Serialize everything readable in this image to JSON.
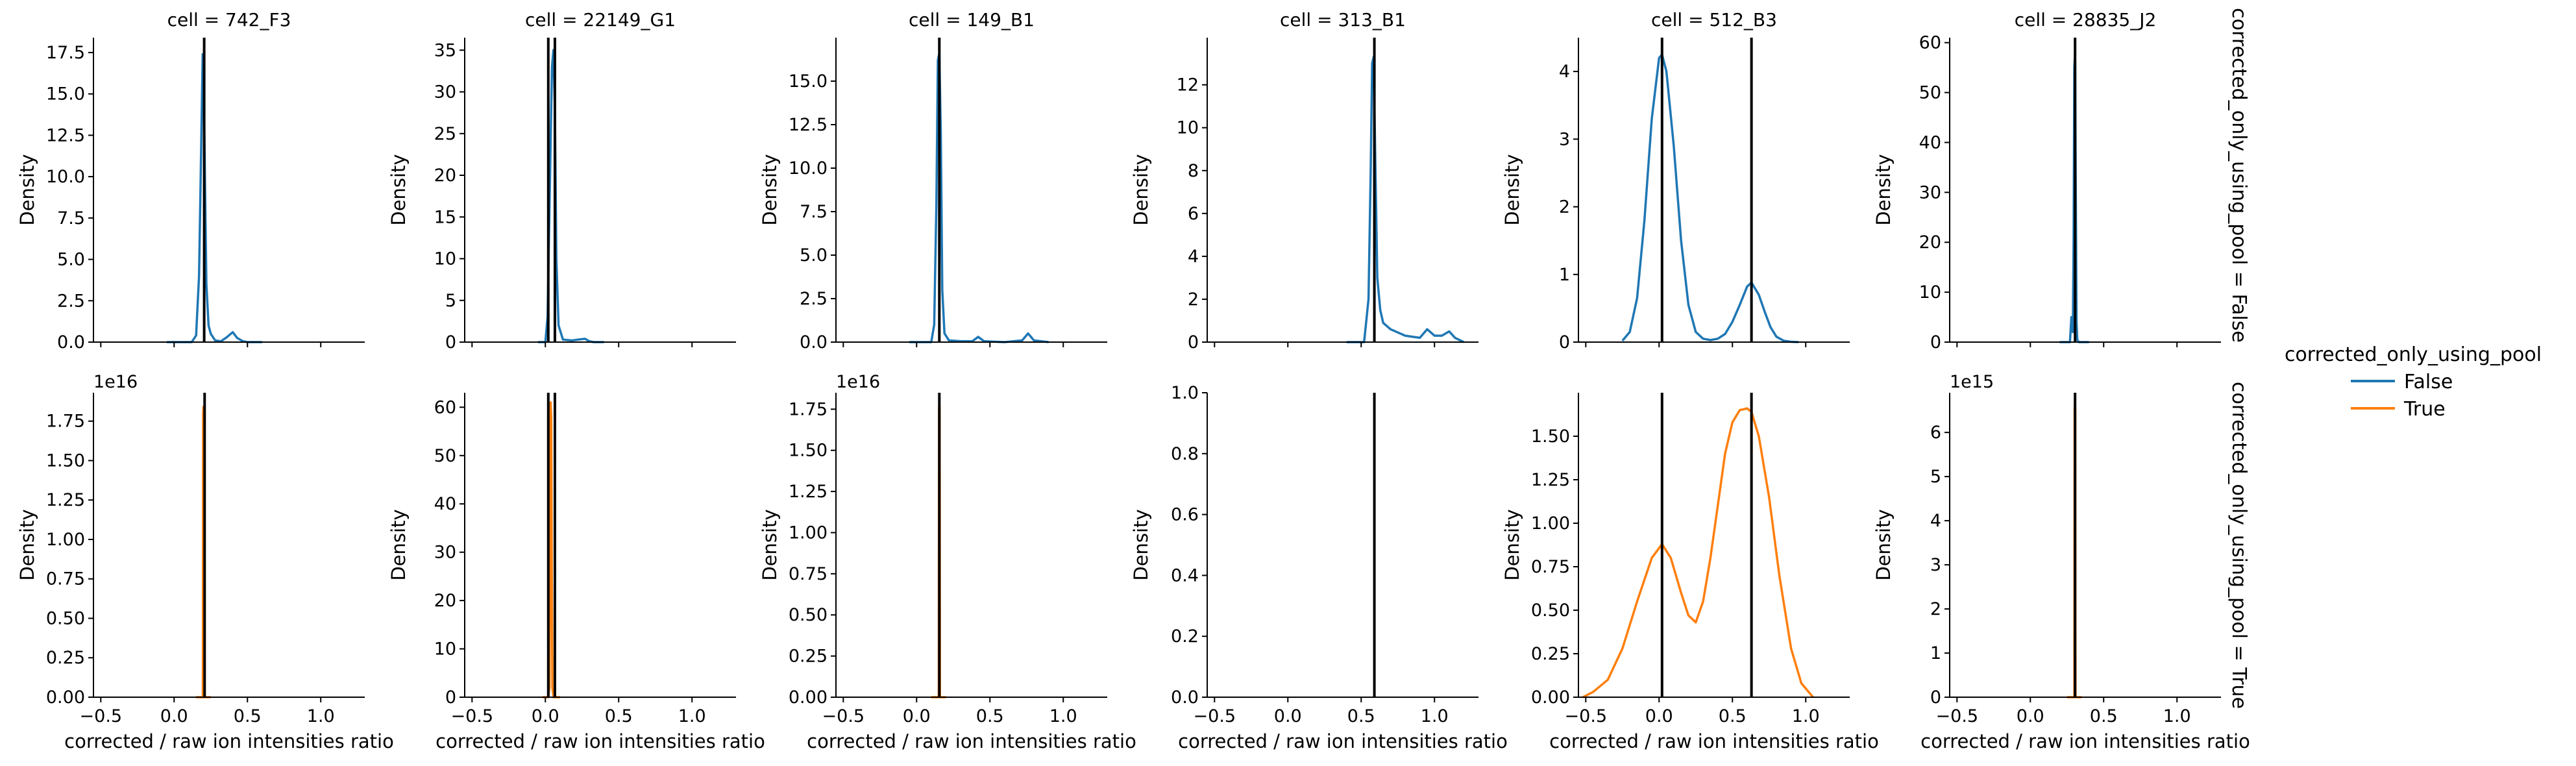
{
  "figure": {
    "hue_variable": "corrected_only_using_pool",
    "row_labels": [
      "corrected_only_using_pool = False",
      "corrected_only_using_pool = True"
    ]
  },
  "legend": {
    "title": "corrected_only_using_pool",
    "entries": [
      {
        "label": "False",
        "color": "#1f77b4"
      },
      {
        "label": "True",
        "color": "#ff7f0e"
      }
    ],
    "placement": "right"
  },
  "colors": {
    "false_series": "#1f77b4",
    "true_series": "#ff7f0e",
    "vline": "#000000",
    "axis": "#000000"
  },
  "chart_data": [
    {
      "type": "line",
      "title": "cell = 742_F3",
      "row": 0,
      "col": 0,
      "xlim": [
        -0.55,
        1.3
      ],
      "xticks": [
        -0.5,
        0.0,
        0.5,
        1.0
      ],
      "xtick_labels": [
        "−0.5",
        "0.0",
        "0.5",
        "1.0"
      ],
      "ylim": [
        0,
        18.4
      ],
      "yticks": [
        0,
        2.5,
        5,
        7.5,
        10,
        12.5,
        15,
        17.5
      ],
      "ytick_labels": [
        "0.0",
        "2.5",
        "5.0",
        "7.5",
        "10.0",
        "12.5",
        "15.0",
        "17.5"
      ],
      "ylabel": "Density",
      "xlabel": "",
      "offset_text": "",
      "vlines": [
        0.205
      ],
      "series": [
        {
          "name": "False",
          "color": "#1f77b4",
          "x": [
            -0.05,
            0.12,
            0.15,
            0.17,
            0.185,
            0.195,
            0.2,
            0.21,
            0.22,
            0.235,
            0.25,
            0.28,
            0.32,
            0.36,
            0.4,
            0.43,
            0.47,
            0.5,
            0.6
          ],
          "y": [
            0,
            0,
            0.4,
            4,
            12,
            17.4,
            17.3,
            10,
            3.5,
            1.0,
            0.5,
            0.1,
            0.05,
            0.3,
            0.6,
            0.25,
            0.05,
            0,
            0
          ]
        }
      ]
    },
    {
      "type": "line",
      "title": "cell = 22149_G1",
      "row": 0,
      "col": 1,
      "xlim": [
        -0.55,
        1.3
      ],
      "xticks": [
        -0.5,
        0.0,
        0.5,
        1.0
      ],
      "xtick_labels": [
        "−0.5",
        "0.0",
        "0.5",
        "1.0"
      ],
      "ylim": [
        0,
        36.5
      ],
      "yticks": [
        0,
        5,
        10,
        15,
        20,
        25,
        30,
        35
      ],
      "ytick_labels": [
        "0",
        "5",
        "10",
        "15",
        "20",
        "25",
        "30",
        "35"
      ],
      "ylabel": "Density",
      "xlabel": "",
      "offset_text": "",
      "vlines": [
        0.02,
        0.065
      ],
      "series": [
        {
          "name": "False",
          "color": "#1f77b4",
          "x": [
            -0.05,
            0.0,
            0.015,
            0.03,
            0.045,
            0.055,
            0.065,
            0.075,
            0.09,
            0.12,
            0.18,
            0.27,
            0.3,
            0.33,
            0.4
          ],
          "y": [
            0,
            0,
            3,
            18,
            33,
            35,
            28,
            10,
            2,
            0.3,
            0.2,
            0.4,
            0.1,
            0,
            0
          ]
        }
      ]
    },
    {
      "type": "line",
      "title": "cell = 149_B1",
      "row": 0,
      "col": 2,
      "xlim": [
        -0.55,
        1.3
      ],
      "xticks": [
        -0.5,
        0.0,
        0.5,
        1.0
      ],
      "xtick_labels": [
        "−0.5",
        "0.0",
        "0.5",
        "1.0"
      ],
      "ylim": [
        0,
        17.5
      ],
      "yticks": [
        0,
        2.5,
        5,
        7.5,
        10,
        12.5,
        15
      ],
      "ytick_labels": [
        "0.0",
        "2.5",
        "5.0",
        "7.5",
        "10.0",
        "12.5",
        "15.0"
      ],
      "ylabel": "Density",
      "xlabel": "",
      "offset_text": "",
      "vlines": [
        0.155
      ],
      "series": [
        {
          "name": "False",
          "color": "#1f77b4",
          "x": [
            -0.05,
            0.1,
            0.12,
            0.135,
            0.145,
            0.155,
            0.165,
            0.175,
            0.19,
            0.22,
            0.3,
            0.38,
            0.42,
            0.46,
            0.6,
            0.72,
            0.76,
            0.8,
            0.9
          ],
          "y": [
            0,
            0,
            1,
            8,
            16.2,
            16.6,
            12,
            3,
            0.5,
            0.1,
            0.05,
            0.05,
            0.3,
            0.05,
            0,
            0.1,
            0.5,
            0.1,
            0
          ]
        }
      ]
    },
    {
      "type": "line",
      "title": "cell = 313_B1",
      "row": 0,
      "col": 3,
      "xlim": [
        -0.55,
        1.3
      ],
      "xticks": [
        -0.5,
        0.0,
        0.5,
        1.0
      ],
      "xtick_labels": [
        "−0.5",
        "0.0",
        "0.5",
        "1.0"
      ],
      "ylim": [
        0,
        14.2
      ],
      "yticks": [
        0,
        2,
        4,
        6,
        8,
        10,
        12
      ],
      "ytick_labels": [
        "0",
        "2",
        "4",
        "6",
        "8",
        "10",
        "12"
      ],
      "ylabel": "Density",
      "xlabel": "",
      "offset_text": "",
      "vlines": [
        0.59
      ],
      "series": [
        {
          "name": "False",
          "color": "#1f77b4",
          "x": [
            0.4,
            0.52,
            0.55,
            0.565,
            0.575,
            0.585,
            0.595,
            0.61,
            0.63,
            0.65,
            0.7,
            0.8,
            0.9,
            0.95,
            1.0,
            1.05,
            1.1,
            1.14,
            1.2
          ],
          "y": [
            0,
            0,
            2,
            8,
            13.0,
            13.3,
            9,
            3,
            1.5,
            0.9,
            0.6,
            0.3,
            0.2,
            0.6,
            0.3,
            0.3,
            0.5,
            0.2,
            0
          ]
        }
      ]
    },
    {
      "type": "line",
      "title": "cell = 512_B3",
      "row": 0,
      "col": 4,
      "xlim": [
        -0.55,
        1.3
      ],
      "xticks": [
        -0.5,
        0.0,
        0.5,
        1.0
      ],
      "xtick_labels": [
        "−0.5",
        "0.0",
        "0.5",
        "1.0"
      ],
      "ylim": [
        0,
        4.5
      ],
      "yticks": [
        0,
        1,
        2,
        3,
        4
      ],
      "ytick_labels": [
        "0",
        "1",
        "2",
        "3",
        "4"
      ],
      "ylabel": "Density",
      "xlabel": "",
      "offset_text": "",
      "vlines": [
        0.02,
        0.63
      ],
      "series": [
        {
          "name": "False",
          "color": "#1f77b4",
          "x": [
            -0.25,
            -0.2,
            -0.15,
            -0.1,
            -0.05,
            0.0,
            0.02,
            0.05,
            0.1,
            0.15,
            0.2,
            0.25,
            0.3,
            0.35,
            0.4,
            0.45,
            0.5,
            0.55,
            0.6,
            0.63,
            0.68,
            0.72,
            0.76,
            0.8,
            0.85,
            0.9,
            0.95
          ],
          "y": [
            0.02,
            0.15,
            0.65,
            1.8,
            3.3,
            4.2,
            4.25,
            4.0,
            2.9,
            1.5,
            0.55,
            0.15,
            0.05,
            0.03,
            0.05,
            0.12,
            0.3,
            0.55,
            0.82,
            0.88,
            0.7,
            0.45,
            0.22,
            0.08,
            0.02,
            0.005,
            0
          ]
        }
      ]
    },
    {
      "type": "line",
      "title": "cell = 28835_J2",
      "row": 0,
      "col": 5,
      "xlim": [
        -0.55,
        1.3
      ],
      "xticks": [
        -0.5,
        0.0,
        0.5,
        1.0
      ],
      "xtick_labels": [
        "−0.5",
        "0.0",
        "0.5",
        "1.0"
      ],
      "ylim": [
        0,
        61
      ],
      "yticks": [
        0,
        10,
        20,
        30,
        40,
        50,
        60
      ],
      "ytick_labels": [
        "0",
        "10",
        "20",
        "30",
        "40",
        "50",
        "60"
      ],
      "ylabel": "Density",
      "xlabel": "",
      "offset_text": "",
      "vlines": [
        0.305
      ],
      "series": [
        {
          "name": "False",
          "color": "#1f77b4",
          "x": [
            0.2,
            0.27,
            0.28,
            0.285,
            0.29,
            0.295,
            0.3,
            0.305,
            0.31,
            0.315,
            0.32,
            0.33,
            0.4
          ],
          "y": [
            0,
            0,
            5,
            3,
            2,
            20,
            55,
            58,
            30,
            4,
            0.5,
            0,
            0
          ]
        }
      ]
    },
    {
      "type": "line",
      "title": "",
      "row": 1,
      "col": 0,
      "xlim": [
        -0.55,
        1.3
      ],
      "xticks": [
        -0.5,
        0.0,
        0.5,
        1.0
      ],
      "xtick_labels": [
        "−0.5",
        "0.0",
        "0.5",
        "1.0"
      ],
      "ylim": [
        0,
        1.93
      ],
      "yticks": [
        0,
        0.25,
        0.5,
        0.75,
        1.0,
        1.25,
        1.5,
        1.75
      ],
      "ytick_labels": [
        "0.00",
        "0.25",
        "0.50",
        "0.75",
        "1.00",
        "1.25",
        "1.50",
        "1.75"
      ],
      "ylabel": "Density",
      "xlabel": "corrected / raw ion intensities ratio",
      "offset_text": "1e16",
      "vlines": [
        0.208
      ],
      "series": [
        {
          "name": "True",
          "color": "#ff7f0e",
          "x": [
            0.15,
            0.19,
            0.196,
            0.198,
            0.2,
            0.202,
            0.204,
            0.21,
            0.25
          ],
          "y": [
            0,
            0,
            0,
            1.8,
            1.84,
            1.8,
            0,
            0,
            0
          ]
        }
      ]
    },
    {
      "type": "line",
      "title": "",
      "row": 1,
      "col": 1,
      "xlim": [
        -0.55,
        1.3
      ],
      "xticks": [
        -0.5,
        0.0,
        0.5,
        1.0
      ],
      "xtick_labels": [
        "−0.5",
        "0.0",
        "0.5",
        "1.0"
      ],
      "ylim": [
        0,
        63
      ],
      "yticks": [
        0,
        10,
        20,
        30,
        40,
        50,
        60
      ],
      "ytick_labels": [
        "0",
        "10",
        "20",
        "30",
        "40",
        "50",
        "60"
      ],
      "ylabel": "Density",
      "xlabel": "corrected / raw ion intensities ratio",
      "offset_text": "",
      "vlines": [
        0.02,
        0.065
      ],
      "series": [
        {
          "name": "True",
          "color": "#ff7f0e",
          "x": [
            -0.02,
            0.02,
            0.028,
            0.032,
            0.036,
            0.04,
            0.044,
            0.048,
            0.056,
            0.1
          ],
          "y": [
            0,
            0,
            2,
            30,
            61,
            58,
            25,
            2,
            0,
            0
          ]
        }
      ]
    },
    {
      "type": "line",
      "title": "",
      "row": 1,
      "col": 2,
      "xlim": [
        -0.55,
        1.3
      ],
      "xticks": [
        -0.5,
        0.0,
        0.5,
        1.0
      ],
      "xtick_labels": [
        "−0.5",
        "0.0",
        "0.5",
        "1.0"
      ],
      "ylim": [
        0,
        1.85
      ],
      "yticks": [
        0,
        0.25,
        0.5,
        0.75,
        1.0,
        1.25,
        1.5,
        1.75
      ],
      "ytick_labels": [
        "0.00",
        "0.25",
        "0.50",
        "0.75",
        "1.00",
        "1.25",
        "1.50",
        "1.75"
      ],
      "ylabel": "Density",
      "xlabel": "corrected / raw ion intensities ratio",
      "offset_text": "1e16",
      "vlines": [
        0.155
      ],
      "series": [
        {
          "name": "True",
          "color": "#ff7f0e",
          "x": [
            0.1,
            0.148,
            0.151,
            0.153,
            0.155,
            0.157,
            0.159,
            0.162,
            0.2
          ],
          "y": [
            0,
            0,
            0,
            1.75,
            1.78,
            1.75,
            0,
            0,
            0
          ]
        }
      ]
    },
    {
      "type": "line",
      "title": "",
      "row": 1,
      "col": 3,
      "xlim": [
        -0.55,
        1.3
      ],
      "xticks": [
        -0.5,
        0.0,
        0.5,
        1.0
      ],
      "xtick_labels": [
        "−0.5",
        "0.0",
        "0.5",
        "1.0"
      ],
      "ylim": [
        0,
        1.0
      ],
      "yticks": [
        0,
        0.2,
        0.4,
        0.6,
        0.8,
        1.0
      ],
      "ytick_labels": [
        "0.0",
        "0.2",
        "0.4",
        "0.6",
        "0.8",
        "1.0"
      ],
      "ylabel": "Density",
      "xlabel": "corrected / raw ion intensities ratio",
      "offset_text": "",
      "vlines": [
        0.59
      ],
      "series": []
    },
    {
      "type": "line",
      "title": "",
      "row": 1,
      "col": 4,
      "xlim": [
        -0.55,
        1.3
      ],
      "xticks": [
        -0.5,
        0.0,
        0.5,
        1.0
      ],
      "xtick_labels": [
        "−0.5",
        "0.0",
        "0.5",
        "1.0"
      ],
      "ylim": [
        0,
        1.75
      ],
      "yticks": [
        0,
        0.25,
        0.5,
        0.75,
        1.0,
        1.25,
        1.5
      ],
      "ytick_labels": [
        "0.00",
        "0.25",
        "0.50",
        "0.75",
        "1.00",
        "1.25",
        "1.50"
      ],
      "ylabel": "Density",
      "xlabel": "corrected / raw ion intensities ratio",
      "offset_text": "",
      "vlines": [
        0.02,
        0.63
      ],
      "series": [
        {
          "name": "True",
          "color": "#ff7f0e",
          "x": [
            -0.52,
            -0.45,
            -0.35,
            -0.25,
            -0.15,
            -0.05,
            0.02,
            0.08,
            0.15,
            0.2,
            0.25,
            0.3,
            0.35,
            0.4,
            0.45,
            0.5,
            0.55,
            0.6,
            0.63,
            0.68,
            0.75,
            0.82,
            0.9,
            0.97,
            1.05
          ],
          "y": [
            0,
            0.03,
            0.1,
            0.28,
            0.55,
            0.8,
            0.88,
            0.8,
            0.6,
            0.47,
            0.43,
            0.55,
            0.8,
            1.1,
            1.4,
            1.58,
            1.65,
            1.66,
            1.64,
            1.5,
            1.15,
            0.7,
            0.28,
            0.08,
            0
          ]
        }
      ]
    },
    {
      "type": "line",
      "title": "",
      "row": 1,
      "col": 5,
      "xlim": [
        -0.55,
        1.3
      ],
      "xticks": [
        -0.5,
        0.0,
        0.5,
        1.0
      ],
      "xtick_labels": [
        "−0.5",
        "0.0",
        "0.5",
        "1.0"
      ],
      "ylim": [
        0,
        6.9
      ],
      "yticks": [
        0,
        1,
        2,
        3,
        4,
        5,
        6
      ],
      "ytick_labels": [
        "0",
        "1",
        "2",
        "3",
        "4",
        "5",
        "6"
      ],
      "ylabel": "Density",
      "xlabel": "corrected / raw ion intensities ratio",
      "offset_text": "1e15",
      "vlines": [
        0.305
      ],
      "series": [
        {
          "name": "True",
          "color": "#ff7f0e",
          "x": [
            0.25,
            0.298,
            0.3,
            0.302,
            0.304,
            0.306,
            0.308,
            0.31,
            0.35
          ],
          "y": [
            0,
            0,
            0,
            6.5,
            6.7,
            6.5,
            0,
            0,
            0
          ]
        }
      ]
    }
  ]
}
